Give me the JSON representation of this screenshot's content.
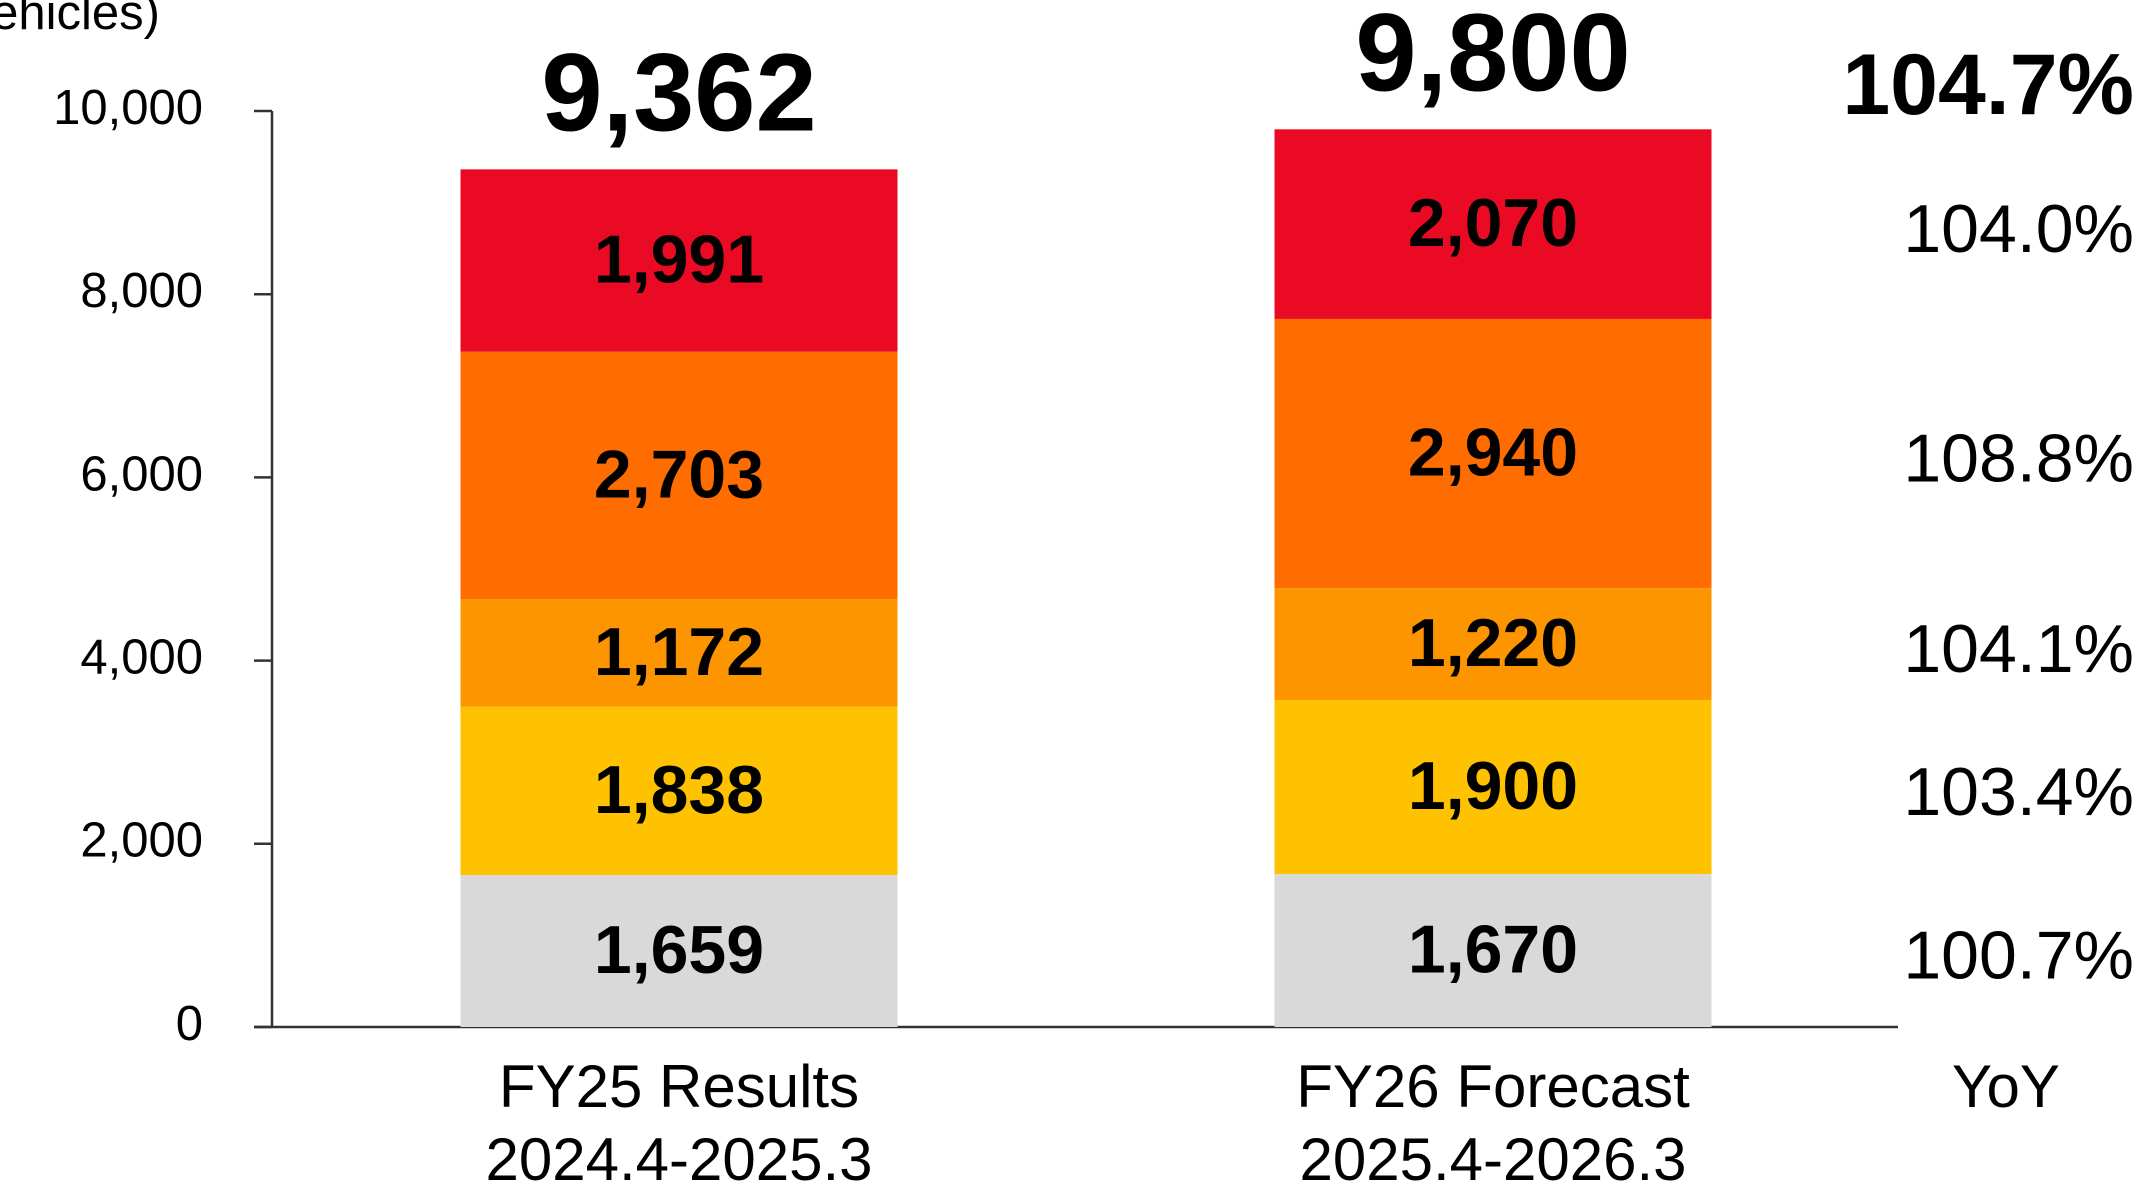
{
  "chart_data": {
    "type": "stacked_bar",
    "y_axis_label": "(vehicles)",
    "categories": [
      [
        "FY25 Results",
        "2024.4-2025.3"
      ],
      [
        "FY26 Forecast",
        "2025.4-2026.3"
      ]
    ],
    "series": [
      {
        "color": "#d9d9d9",
        "label_color": "#000000",
        "values": [
          1659,
          1670
        ],
        "value_labels": [
          "1,659",
          "1,670"
        ]
      },
      {
        "color": "#fec200",
        "label_color": "#ffffff",
        "values": [
          1838,
          1900
        ],
        "value_labels": [
          "1,838",
          "1,900"
        ]
      },
      {
        "color": "#fd9500",
        "label_color": "#ffffff",
        "values": [
          1172,
          1220
        ],
        "value_labels": [
          "1,172",
          "1,220"
        ]
      },
      {
        "color": "#ff6c00",
        "label_color": "#ffffff",
        "values": [
          2703,
          2940
        ],
        "value_labels": [
          "2,703",
          "2,940"
        ]
      },
      {
        "color": "#ea0a23",
        "label_color": "#ffffff",
        "values": [
          1991,
          2070
        ],
        "value_labels": [
          "1,991",
          "2,070"
        ]
      }
    ],
    "totals": [
      9362,
      9800
    ],
    "total_labels": [
      "9,362",
      "9,800"
    ],
    "yoy_title": "YoY",
    "yoy_total": {
      "value": 104.7,
      "label": "104.7%"
    },
    "yoy": [
      {
        "value": 100.7,
        "label": "100.7%"
      },
      {
        "value": 103.4,
        "label": "103.4%"
      },
      {
        "value": 104.1,
        "label": "104.1%"
      },
      {
        "value": 108.8,
        "label": "108.8%"
      },
      {
        "value": 104.0,
        "label": "104.0%"
      }
    ],
    "ylim": [
      0,
      10000
    ],
    "yticks": [
      0,
      {
        "value": 2000,
        "label": "2,000"
      },
      {
        "value": 4000,
        "label": "4,000"
      },
      {
        "value": 6000,
        "label": "6,000"
      },
      {
        "value": 8000,
        "label": "8,000"
      },
      {
        "value": 10000,
        "label": "10,000"
      }
    ]
  }
}
